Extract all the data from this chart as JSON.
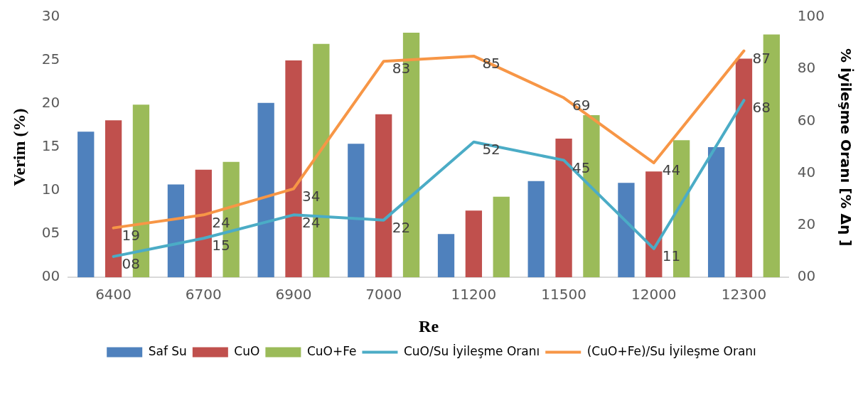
{
  "chart_data": {
    "type": "bar",
    "xlabel": "Re",
    "ylabel": "Verim (%)",
    "y2label": "% İyileşme Oranı [% Δη ]",
    "categories": [
      "6400",
      "6700",
      "6900",
      "7000",
      "11200",
      "11500",
      "12000",
      "12300"
    ],
    "series": [
      {
        "name": "Saf Su",
        "color": "#4f81bd",
        "values": [
          16.8,
          10.7,
          20.1,
          15.4,
          5.0,
          11.1,
          10.9,
          15.0
        ]
      },
      {
        "name": "CuO",
        "color": "#c0504d",
        "values": [
          18.1,
          12.4,
          25.0,
          18.8,
          7.7,
          16.0,
          12.2,
          25.2
        ]
      },
      {
        "name": "CuO+Fe",
        "color": "#9bbb59",
        "values": [
          19.9,
          13.3,
          26.9,
          28.2,
          9.3,
          18.7,
          15.8,
          28.0
        ]
      },
      {
        "name": "CuO/Su İyileşme Oranı",
        "type": "line",
        "axis": "y2",
        "color": "#4bacc6",
        "values": [
          8,
          15,
          24,
          22,
          52,
          45,
          11,
          68
        ],
        "value_labels": [
          "08",
          "15",
          "24",
          "22",
          "52",
          "45",
          "11",
          "68"
        ]
      },
      {
        "name": "(CuO+Fe)/Su İyileşme Oranı",
        "type": "line",
        "axis": "y2",
        "color": "#f79646",
        "values": [
          19,
          24,
          34,
          83,
          85,
          69,
          44,
          87
        ],
        "value_labels": [
          "19",
          "24",
          "34",
          "83",
          "85",
          "69",
          "44",
          "87"
        ]
      }
    ],
    "ylim": [
      0,
      30
    ],
    "yticks": [
      {
        "value": 0,
        "label": "00"
      },
      {
        "value": 5,
        "label": "05"
      },
      10,
      15,
      20,
      25,
      30
    ],
    "y2lim": [
      0,
      100
    ],
    "y2ticks": [
      {
        "value": 0,
        "label": "00"
      },
      20,
      40,
      60,
      80,
      100
    ],
    "grid": false,
    "legend": "bottom",
    "marker": "none"
  }
}
